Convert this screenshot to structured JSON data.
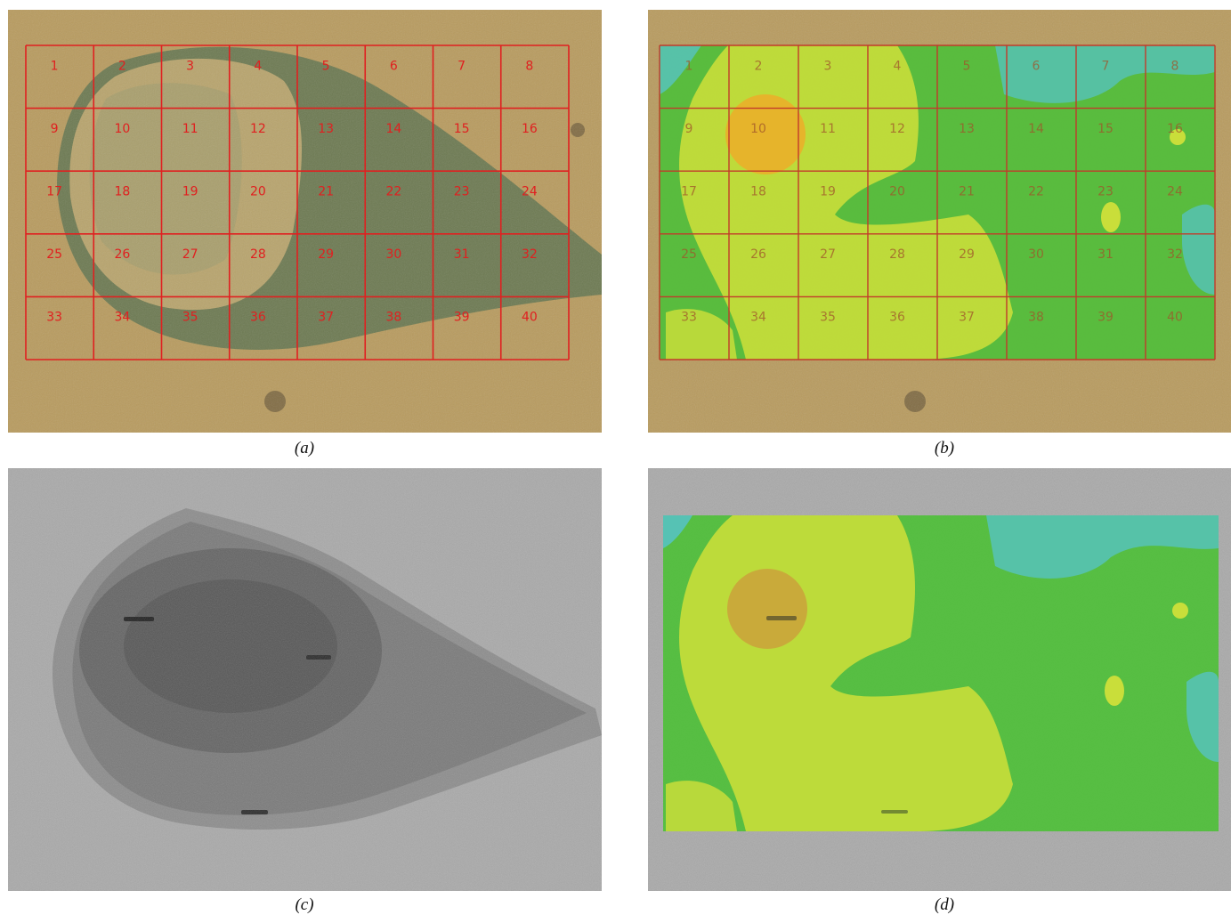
{
  "figure": {
    "panels": [
      {
        "id": "a",
        "caption": "(a)"
      },
      {
        "id": "b",
        "caption": "(b)"
      },
      {
        "id": "c",
        "caption": "(c)"
      },
      {
        "id": "d",
        "caption": "(d)"
      }
    ],
    "grid": {
      "rows": 5,
      "cols": 8,
      "cell_labels": [
        "1",
        "2",
        "3",
        "4",
        "5",
        "6",
        "7",
        "8",
        "9",
        "10",
        "11",
        "12",
        "13",
        "14",
        "15",
        "16",
        "17",
        "18",
        "19",
        "20",
        "21",
        "22",
        "23",
        "24",
        "25",
        "26",
        "27",
        "28",
        "29",
        "30",
        "31",
        "32",
        "33",
        "34",
        "35",
        "36",
        "37",
        "38",
        "39",
        "40"
      ]
    },
    "colors": {
      "grid_red": "#e02020",
      "optical_bg": "#b59a5e",
      "tem_bg": "#a7a7a7",
      "map_green": "#4fbf3a",
      "map_yellow": "#c9de3a",
      "map_orange": "#e8b22a",
      "map_cyan": "#56c2b4"
    }
  }
}
